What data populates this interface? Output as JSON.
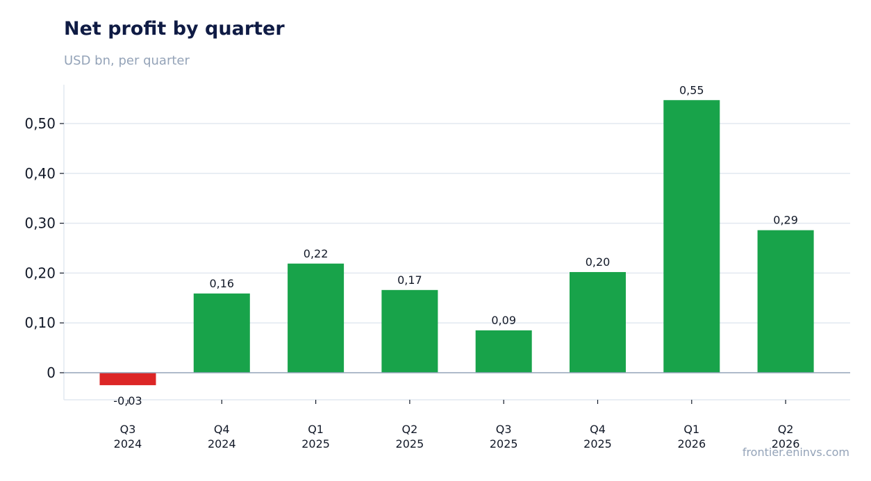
{
  "header": {
    "title": "Net profit by quarter",
    "subtitle": "USD bn, per quarter"
  },
  "footer": {
    "source": "frontier.eninvs.com"
  },
  "chart_data": {
    "type": "bar",
    "title": "Net profit by quarter",
    "subtitle": "USD bn, per quarter",
    "categories": [
      [
        "Q3",
        "2024"
      ],
      [
        "Q4",
        "2024"
      ],
      [
        "Q1",
        "2025"
      ],
      [
        "Q2",
        "2025"
      ],
      [
        "Q3",
        "2025"
      ],
      [
        "Q4",
        "2025"
      ],
      [
        "Q1",
        "2026"
      ],
      [
        "Q2",
        "2026"
      ]
    ],
    "values": [
      -0.025,
      0.159,
      0.219,
      0.166,
      0.085,
      0.202,
      0.547,
      0.286
    ],
    "data_labels": [
      "-0,03",
      "0,16",
      "0,22",
      "0,17",
      "0,09",
      "0,20",
      "0,55",
      "0,29"
    ],
    "yticks": [
      0,
      0.1,
      0.2,
      0.3,
      0.4,
      0.5
    ],
    "ytick_labels": [
      "0",
      "0,10",
      "0,20",
      "0,30",
      "0,40",
      "0,50"
    ],
    "ylim": [
      -0.055,
      0.578
    ],
    "grid": true,
    "colors": {
      "positive": "#18a34a",
      "negative": "#dc2626",
      "grid": "#e2e8f0",
      "baseline": "#94a3b8"
    }
  }
}
